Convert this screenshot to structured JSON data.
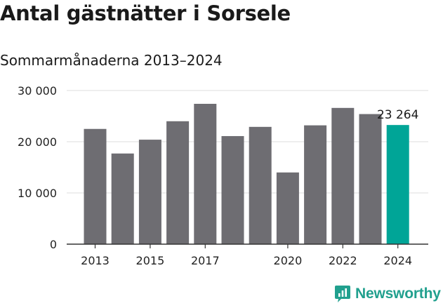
{
  "header": {
    "title": "Antal gästnätter i Sorsele",
    "subtitle": "Sommarmånaderna 2013–2024"
  },
  "brand": {
    "name": "Newsworthy",
    "icon": "newsworthy-logo-icon",
    "color": "#21a08e"
  },
  "chart_data": {
    "type": "bar",
    "title": "Antal gästnätter i Sorsele",
    "subtitle": "Sommarmånaderna 2013–2024",
    "xlabel": "",
    "ylabel": "",
    "categories": [
      "2013",
      "2014",
      "2015",
      "2016",
      "2017",
      "2018",
      "2019",
      "2020",
      "2021",
      "2022",
      "2023",
      "2024"
    ],
    "values": [
      22500,
      17700,
      20400,
      24000,
      27400,
      21100,
      22900,
      14000,
      23200,
      26600,
      25400,
      23264
    ],
    "x_tick_labels": [
      "2013",
      "2015",
      "2017",
      "2020",
      "2022",
      "2024"
    ],
    "y_ticks": [
      0,
      10000,
      20000,
      30000
    ],
    "y_tick_labels": [
      "0",
      "10 000",
      "20 000",
      "30 000"
    ],
    "ylim": [
      0,
      30000
    ],
    "grid": true,
    "bar_color": "#6e6d72",
    "highlight_color": "#00a597",
    "highlight_category": "2024",
    "data_labels": [
      {
        "category": "2024",
        "text": "23 264"
      }
    ]
  }
}
